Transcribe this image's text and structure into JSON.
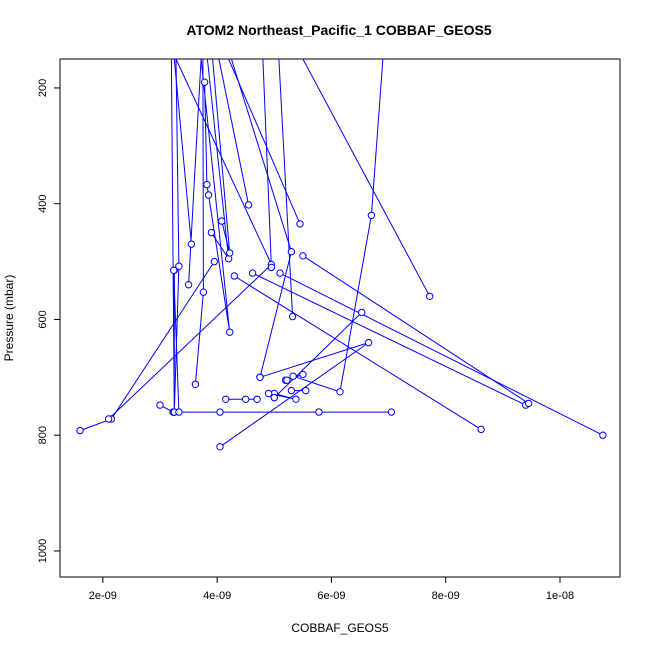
{
  "chart_data": {
    "type": "line",
    "title": "ATOM2 Northeast_Pacific_1 COBBAF_GEOS5",
    "xlabel": "COBBAF_GEOS5",
    "ylabel": "Pressure (mbar)",
    "xlim": [
      1.25e-09,
      1.105e-08
    ],
    "ylim": [
      1045,
      150
    ],
    "y_inverted": true,
    "grid": false,
    "legend": "none",
    "series_color": "#0000ff",
    "x_ticks": [
      {
        "value": 2e-09,
        "label": "2e-09"
      },
      {
        "value": 4e-09,
        "label": "4e-09"
      },
      {
        "value": 6e-09,
        "label": "6e-09"
      },
      {
        "value": 8e-09,
        "label": "8e-09"
      },
      {
        "value": 1e-08,
        "label": "1e-08"
      }
    ],
    "y_ticks": [
      {
        "value": 200,
        "label": "200"
      },
      {
        "value": 400,
        "label": "400"
      },
      {
        "value": 600,
        "label": "600"
      },
      {
        "value": 800,
        "label": "800"
      },
      {
        "value": 1000,
        "label": "1000"
      }
    ],
    "profiles": [
      [
        [
          1.6e-09,
          792
        ],
        [
          2.15e-09,
          772
        ],
        [
          3.95e-09,
          500
        ]
      ],
      [
        [
          2.1e-09,
          772
        ],
        [
          4.95e-09,
          505
        ],
        [
          3.28e-09,
          150
        ]
      ],
      [
        [
          3e-09,
          748
        ],
        [
          3.23e-09,
          760
        ],
        [
          4.05e-09,
          760
        ],
        [
          5.78e-09,
          760
        ],
        [
          7.05e-09,
          760
        ]
      ],
      [
        [
          3.25e-09,
          515
        ],
        [
          3.25e-09,
          760
        ],
        [
          3.2e-09,
          150
        ]
      ],
      [
        [
          3.25e-09,
          760
        ],
        [
          3.33e-09,
          508
        ],
        [
          3.28e-09,
          150
        ]
      ],
      [
        [
          3.33e-09,
          760
        ],
        [
          3.24e-09,
          515
        ]
      ],
      [
        [
          3.5e-09,
          540
        ],
        [
          3.72e-09,
          150
        ]
      ],
      [
        [
          3.55e-09,
          470
        ],
        [
          3.25e-09,
          150
        ]
      ],
      [
        [
          3.62e-09,
          712
        ],
        [
          3.76e-09,
          553
        ],
        [
          3.75e-09,
          150
        ]
      ],
      [
        [
          3.78e-09,
          190
        ],
        [
          3.82e-09,
          367
        ],
        [
          3.85e-09,
          385
        ],
        [
          4.22e-09,
          622
        ],
        [
          3.72e-09,
          150
        ]
      ],
      [
        [
          3.9e-09,
          450
        ],
        [
          4.2e-09,
          495
        ],
        [
          3.83e-09,
          150
        ]
      ],
      [
        [
          4.08e-09,
          430
        ],
        [
          4.22e-09,
          485
        ],
        [
          3.92e-09,
          150
        ]
      ],
      [
        [
          4.05e-09,
          820
        ],
        [
          6.65e-09,
          640
        ],
        [
          4.75e-09,
          700
        ]
      ],
      [
        [
          4.15e-09,
          738
        ],
        [
          4.5e-09,
          738
        ],
        [
          4.7e-09,
          738
        ]
      ],
      [
        [
          4.3e-09,
          525
        ],
        [
          8.62e-09,
          790
        ]
      ],
      [
        [
          4.55e-09,
          402
        ],
        [
          4.03e-09,
          150
        ]
      ],
      [
        [
          4.62e-09,
          520
        ],
        [
          9.4e-09,
          748
        ]
      ],
      [
        [
          4.75e-09,
          700
        ],
        [
          5.3e-09,
          483
        ],
        [
          4.25e-09,
          150
        ]
      ],
      [
        [
          4.95e-09,
          510
        ],
        [
          4.8e-09,
          150
        ]
      ],
      [
        [
          5e-09,
          728
        ],
        [
          5.38e-09,
          738
        ],
        [
          4.9e-09,
          728
        ]
      ],
      [
        [
          5e-09,
          735
        ],
        [
          6.53e-09,
          588
        ],
        [
          5e-09,
          735
        ]
      ],
      [
        [
          5.1e-09,
          520
        ],
        [
          1.075e-08,
          800
        ]
      ],
      [
        [
          5.2e-09,
          705
        ],
        [
          5.5e-09,
          695
        ],
        [
          5.22e-09,
          705
        ]
      ],
      [
        [
          5.3e-09,
          723
        ],
        [
          5.55e-09,
          723
        ]
      ],
      [
        [
          5.32e-09,
          595
        ],
        [
          5.08e-09,
          150
        ]
      ],
      [
        [
          5.33e-09,
          698
        ],
        [
          6.15e-09,
          725
        ],
        [
          6.7e-09,
          420
        ],
        [
          6.9e-09,
          150
        ]
      ],
      [
        [
          5.45e-09,
          435
        ],
        [
          4.2e-09,
          150
        ]
      ],
      [
        [
          5.5e-09,
          490
        ],
        [
          9.45e-09,
          745
        ]
      ],
      [
        [
          7.72e-09,
          560
        ],
        [
          5.5e-09,
          150
        ]
      ]
    ]
  }
}
